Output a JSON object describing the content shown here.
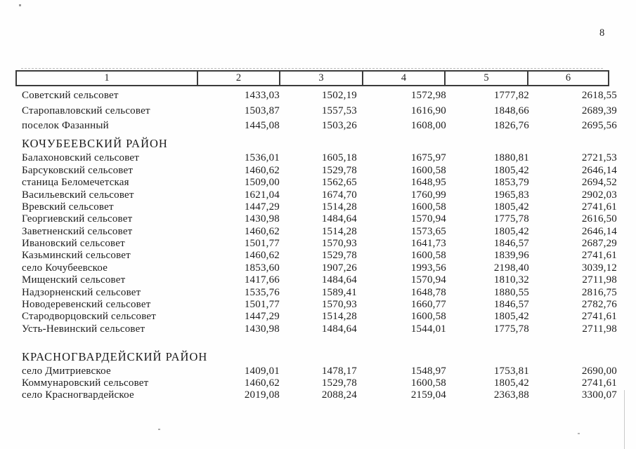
{
  "page": {
    "number": "8"
  },
  "artifact_colors": {
    "border": "#3b3b3b",
    "text": "#1c1c1c"
  },
  "table": {
    "header_cols": [
      "1",
      "2",
      "3",
      "4",
      "5",
      "6"
    ],
    "sections": [
      {
        "title": "",
        "rows": [
          {
            "name": "Советский сельсовет",
            "values": [
              "1433,03",
              "1502,19",
              "1572,98",
              "1777,82",
              "2618,55"
            ]
          },
          {
            "name": "Старопавловский сельсовет",
            "values": [
              "1503,87",
              "1557,53",
              "1616,90",
              "1848,66",
              "2689,39"
            ]
          },
          {
            "name": "поселок Фазанный",
            "values": [
              "1445,08",
              "1503,26",
              "1608,00",
              "1826,76",
              "2695,56"
            ]
          }
        ]
      },
      {
        "title": "КОЧУБЕЕВСКИЙ РАЙОН",
        "rows": [
          {
            "name": "Балахоновский сельсовет",
            "values": [
              "1536,01",
              "1605,18",
              "1675,97",
              "1880,81",
              "2721,53"
            ]
          },
          {
            "name": "Барсуковский сельсовет",
            "values": [
              "1460,62",
              "1529,78",
              "1600,58",
              "1805,42",
              "2646,14"
            ]
          },
          {
            "name": "станица Беломечетская",
            "values": [
              "1509,00",
              "1562,65",
              "1648,95",
              "1853,79",
              "2694,52"
            ]
          },
          {
            "name": "Васильевский сельсовет",
            "values": [
              "1621,04",
              "1674,70",
              "1760,99",
              "1965,83",
              "2902,03"
            ]
          },
          {
            "name": "Вревский сельсовет",
            "values": [
              "1447,29",
              "1514,28",
              "1600,58",
              "1805,42",
              "2741,61"
            ]
          },
          {
            "name": "Георгиевский сельсовет",
            "values": [
              "1430,98",
              "1484,64",
              "1570,94",
              "1775,78",
              "2616,50"
            ]
          },
          {
            "name": "Заветненский сельсовет",
            "values": [
              "1460,62",
              "1514,28",
              "1573,65",
              "1805,42",
              "2646,14"
            ]
          },
          {
            "name": "Ивановский сельсовет",
            "values": [
              "1501,77",
              "1570,93",
              "1641,73",
              "1846,57",
              "2687,29"
            ]
          },
          {
            "name": "Казьминский сельсовет",
            "values": [
              "1460,62",
              "1529,78",
              "1600,58",
              "1839,96",
              "2741,61"
            ]
          },
          {
            "name": "село Кочубеевское",
            "values": [
              "1853,60",
              "1907,26",
              "1993,56",
              "2198,40",
              "3039,12"
            ]
          },
          {
            "name": "Мищенский сельсовет",
            "values": [
              "1417,66",
              "1484,64",
              "1570,94",
              "1810,32",
              "2711,98"
            ]
          },
          {
            "name": "Надзорненский сельсовет",
            "values": [
              "1535,76",
              "1589,41",
              "1648,78",
              "1880,55",
              "2816,75"
            ]
          },
          {
            "name": "Новодеревенский сельсовет",
            "values": [
              "1501,77",
              "1570,93",
              "1660,77",
              "1846,57",
              "2782,76"
            ]
          },
          {
            "name": "Стародворцовский сельсовет",
            "values": [
              "1447,29",
              "1514,28",
              "1600,58",
              "1805,42",
              "2741,61"
            ]
          },
          {
            "name": "Усть-Невинский сельсовет",
            "values": [
              "1430,98",
              "1484,64",
              "1544,01",
              "1775,78",
              "2711,98"
            ]
          }
        ]
      },
      {
        "title": "КРАСНОГВАРДЕЙСКИЙ РАЙОН",
        "rows": [
          {
            "name": "село Дмитриевское",
            "values": [
              "1409,01",
              "1478,17",
              "1548,97",
              "1753,81",
              "2690,00"
            ]
          },
          {
            "name": "Коммунаровский сельсовет",
            "values": [
              "1460,62",
              "1529,78",
              "1600,58",
              "1805,42",
              "2741,61"
            ]
          },
          {
            "name": "село Красногвардейское",
            "values": [
              "2019,08",
              "2088,24",
              "2159,04",
              "2363,88",
              "3300,07"
            ]
          }
        ]
      }
    ]
  }
}
